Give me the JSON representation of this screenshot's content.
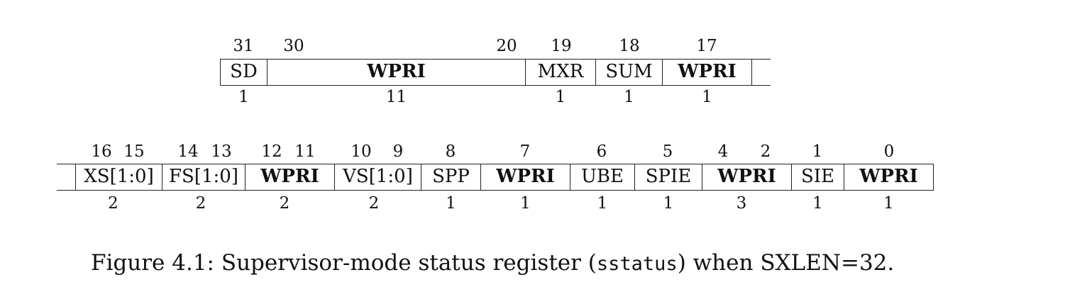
{
  "register_upper": {
    "bit_labels": [
      "31",
      "30",
      "20",
      "19",
      "18",
      "17"
    ],
    "fields": [
      {
        "name": "SD",
        "width": "1",
        "bold": false
      },
      {
        "name": "WPRI",
        "width": "11",
        "bold": true
      },
      {
        "name": "MXR",
        "width": "1",
        "bold": false
      },
      {
        "name": "SUM",
        "width": "1",
        "bold": false
      },
      {
        "name": "WPRI",
        "width": "1",
        "bold": true
      }
    ]
  },
  "register_lower": {
    "bit_labels": [
      "16",
      "15",
      "14",
      "13",
      "12",
      "11",
      "10",
      "9",
      "8",
      "7",
      "6",
      "5",
      "4",
      "2",
      "1",
      "0"
    ],
    "fields": [
      {
        "name": "XS[1:0]",
        "width": "2",
        "bold": false
      },
      {
        "name": "FS[1:0]",
        "width": "2",
        "bold": false
      },
      {
        "name": "WPRI",
        "width": "2",
        "bold": true
      },
      {
        "name": "VS[1:0]",
        "width": "2",
        "bold": false
      },
      {
        "name": "SPP",
        "width": "1",
        "bold": false
      },
      {
        "name": "WPRI",
        "width": "1",
        "bold": true
      },
      {
        "name": "UBE",
        "width": "1",
        "bold": false
      },
      {
        "name": "SPIE",
        "width": "1",
        "bold": false
      },
      {
        "name": "WPRI",
        "width": "3",
        "bold": true
      },
      {
        "name": "SIE",
        "width": "1",
        "bold": false
      },
      {
        "name": "WPRI",
        "width": "1",
        "bold": true
      }
    ]
  },
  "caption": {
    "prefix": "Figure 4.1: Supervisor-mode status register (",
    "code": "sstatus",
    "suffix": ") when SXLEN=32."
  }
}
